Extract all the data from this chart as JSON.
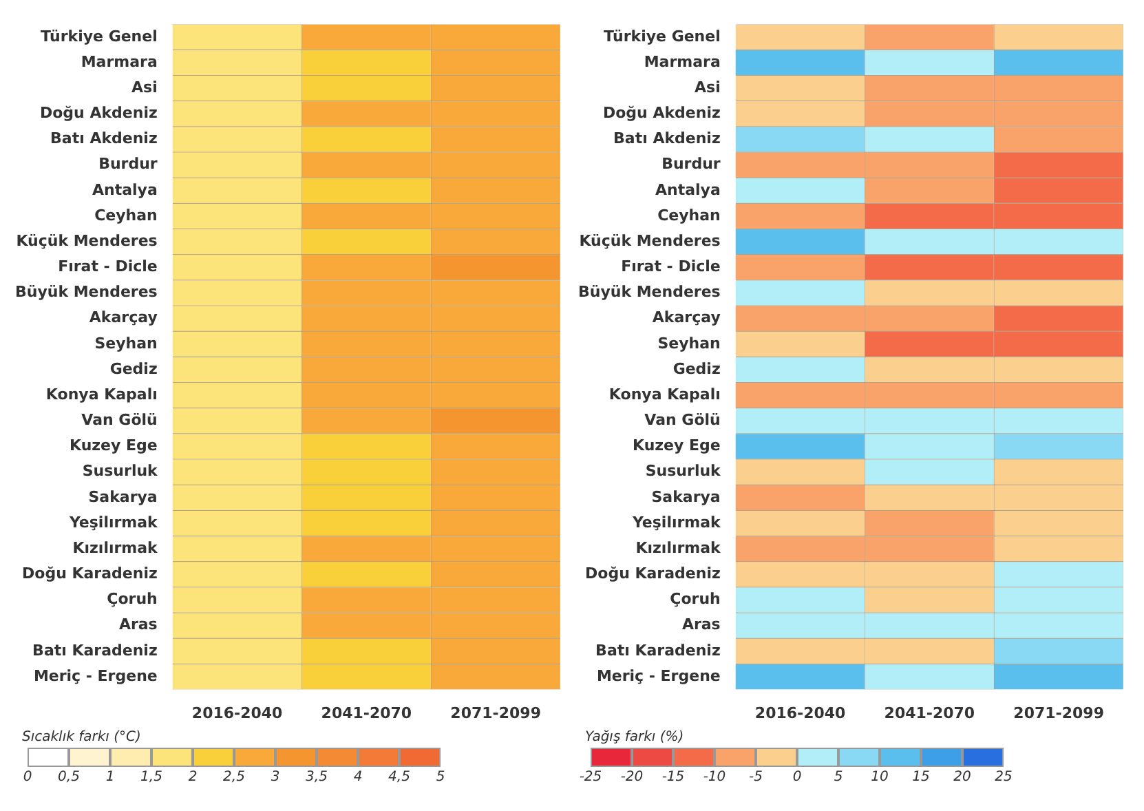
{
  "chart_data": [
    {
      "type": "heatmap",
      "categories": [
        "2016-2040",
        "2041-2070",
        "2071-2099"
      ],
      "y_categories": [
        "Türkiye Genel",
        "Marmara",
        "Asi",
        "Doğu Akdeniz",
        "Batı Akdeniz",
        "Burdur",
        "Antalya",
        "Ceyhan",
        "Küçük Menderes",
        "Fırat - Dicle",
        "Büyük Menderes",
        "Akarçay",
        "Seyhan",
        "Gediz",
        "Konya Kapalı",
        "Van Gölü",
        "Kuzey Ege",
        "Susurluk",
        "Sakarya",
        "Yeşilırmak",
        "Kızılırmak",
        "Doğu Karadeniz",
        "Çoruh",
        "Aras",
        "Batı Karadeniz",
        "Meriç - Ergene"
      ],
      "cells": [
        [
          1.75,
          2.75,
          2.75
        ],
        [
          1.75,
          2.25,
          2.75
        ],
        [
          1.75,
          2.25,
          2.75
        ],
        [
          1.75,
          2.75,
          2.75
        ],
        [
          1.75,
          2.25,
          2.75
        ],
        [
          1.75,
          2.75,
          2.75
        ],
        [
          1.75,
          2.25,
          2.75
        ],
        [
          1.75,
          2.75,
          2.75
        ],
        [
          1.75,
          2.25,
          2.75
        ],
        [
          1.75,
          2.75,
          3.25
        ],
        [
          1.75,
          2.75,
          2.75
        ],
        [
          1.75,
          2.75,
          2.75
        ],
        [
          1.75,
          2.75,
          2.75
        ],
        [
          1.75,
          2.75,
          2.75
        ],
        [
          1.75,
          2.75,
          2.75
        ],
        [
          1.75,
          2.75,
          3.25
        ],
        [
          1.75,
          2.25,
          2.75
        ],
        [
          1.75,
          2.25,
          2.75
        ],
        [
          1.75,
          2.25,
          2.75
        ],
        [
          1.75,
          2.25,
          2.75
        ],
        [
          1.75,
          2.75,
          2.75
        ],
        [
          1.75,
          2.25,
          2.75
        ],
        [
          1.75,
          2.75,
          2.75
        ],
        [
          1.75,
          2.75,
          2.75
        ],
        [
          1.75,
          2.25,
          2.75
        ],
        [
          1.75,
          2.25,
          2.75
        ]
      ],
      "clabel": "Sıcaklık farkı (°C)",
      "clim": [
        0,
        5
      ],
      "cticks": [
        0,
        {
          "value": 0.5,
          "label": "0,5"
        },
        1,
        {
          "value": 1.5,
          "label": "1,5"
        },
        2,
        {
          "value": 2.5,
          "label": "2,5"
        },
        3,
        {
          "value": 3.5,
          "label": "3,5"
        },
        4,
        {
          "value": 4.5,
          "label": "4,5"
        },
        5
      ]
    },
    {
      "type": "heatmap",
      "categories": [
        "2016-2040",
        "2041-2070",
        "2071-2099"
      ],
      "y_categories": [
        "Türkiye Genel",
        "Marmara",
        "Asi",
        "Doğu Akdeniz",
        "Batı Akdeniz",
        "Burdur",
        "Antalya",
        "Ceyhan",
        "Küçük Menderes",
        "Fırat - Dicle",
        "Büyük Menderes",
        "Akarçay",
        "Seyhan",
        "Gediz",
        "Konya Kapalı",
        "Van Gölü",
        "Kuzey Ege",
        "Susurluk",
        "Sakarya",
        "Yeşilırmak",
        "Kızılırmak",
        "Doğu Karadeniz",
        "Çoruh",
        "Aras",
        "Batı Karadeniz",
        "Meriç - Ergene"
      ],
      "cells": [
        [
          -2.5,
          -7.5,
          -2.5
        ],
        [
          12.5,
          2.5,
          12.5
        ],
        [
          -2.5,
          -7.5,
          -7.5
        ],
        [
          -2.5,
          -7.5,
          -7.5
        ],
        [
          7.5,
          2.5,
          -7.5
        ],
        [
          -7.5,
          -7.5,
          -12.5
        ],
        [
          2.5,
          -7.5,
          -12.5
        ],
        [
          -7.5,
          -12.5,
          -12.5
        ],
        [
          12.5,
          2.5,
          2.5
        ],
        [
          -7.5,
          -12.5,
          -12.5
        ],
        [
          2.5,
          -2.5,
          -2.5
        ],
        [
          -7.5,
          -7.5,
          -12.5
        ],
        [
          -2.5,
          -12.5,
          -12.5
        ],
        [
          2.5,
          -2.5,
          -2.5
        ],
        [
          -7.5,
          -7.5,
          -7.5
        ],
        [
          2.5,
          2.5,
          2.5
        ],
        [
          12.5,
          2.5,
          7.5
        ],
        [
          -2.5,
          2.5,
          -2.5
        ],
        [
          -7.5,
          -2.5,
          -2.5
        ],
        [
          -2.5,
          -7.5,
          -2.5
        ],
        [
          -7.5,
          -7.5,
          -2.5
        ],
        [
          -2.5,
          -2.5,
          2.5
        ],
        [
          2.5,
          -2.5,
          2.5
        ],
        [
          2.5,
          2.5,
          2.5
        ],
        [
          -2.5,
          -2.5,
          7.5
        ],
        [
          12.5,
          2.5,
          12.5
        ]
      ],
      "clabel": "Yağış farkı (%)",
      "clim": [
        -25,
        25
      ],
      "cticks": [
        -25,
        -20,
        -15,
        -10,
        -5,
        0,
        5,
        10,
        15,
        20,
        25
      ]
    }
  ]
}
